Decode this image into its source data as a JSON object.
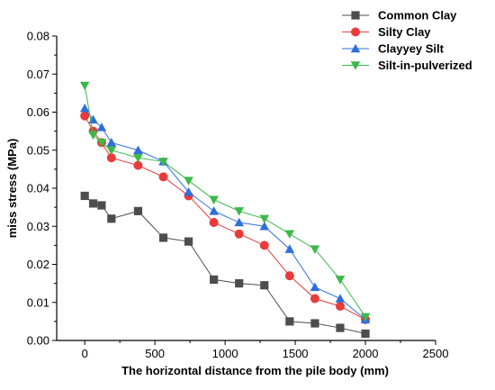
{
  "chart_data": {
    "type": "line",
    "title": "",
    "xlabel": "The horizontal distance from the pile body (mm)",
    "ylabel": "miss stress (MPa)",
    "xlim": [
      -200,
      2500
    ],
    "ylim": [
      0,
      0.08
    ],
    "x_ticks": [
      "0",
      "500",
      "1000",
      "1500",
      "2000",
      "2500"
    ],
    "y_ticks": [
      "0.00",
      "0.01",
      "0.02",
      "0.03",
      "0.04",
      "0.05",
      "0.06",
      "0.07",
      "0.08"
    ],
    "grid": false,
    "legend_position": "top-right",
    "series": [
      {
        "name": "Common Clay",
        "color": "#4d4d4d",
        "marker": "square",
        "x": [
          0,
          60,
          120,
          190,
          380,
          560,
          740,
          920,
          1100,
          1280,
          1460,
          1640,
          1820,
          2000
        ],
        "y": [
          0.038,
          0.036,
          0.0355,
          0.032,
          0.034,
          0.027,
          0.026,
          0.016,
          0.015,
          0.0145,
          0.005,
          0.0045,
          0.0033,
          0.0018
        ]
      },
      {
        "name": "Silty Clay",
        "color": "#e83b3b",
        "marker": "circle",
        "x": [
          0,
          60,
          120,
          190,
          380,
          560,
          740,
          920,
          1100,
          1280,
          1460,
          1640,
          1820,
          2000
        ],
        "y": [
          0.059,
          0.055,
          0.052,
          0.048,
          0.046,
          0.043,
          0.038,
          0.031,
          0.028,
          0.025,
          0.017,
          0.011,
          0.009,
          0.0055
        ]
      },
      {
        "name": "Clayyey Silt",
        "color": "#2f6fdc",
        "marker": "triangle-up",
        "x": [
          0,
          60,
          120,
          190,
          380,
          560,
          740,
          920,
          1100,
          1280,
          1460,
          1640,
          1820,
          2000
        ],
        "y": [
          0.061,
          0.058,
          0.056,
          0.052,
          0.05,
          0.047,
          0.039,
          0.034,
          0.031,
          0.03,
          0.024,
          0.014,
          0.011,
          0.0055
        ]
      },
      {
        "name": "Silt-in-pulverized",
        "color": "#3cb84a",
        "marker": "triangle-down",
        "x": [
          0,
          60,
          120,
          190,
          380,
          560,
          740,
          920,
          1100,
          1280,
          1460,
          1640,
          1820,
          2000
        ],
        "y": [
          0.067,
          0.054,
          0.052,
          0.05,
          0.048,
          0.047,
          0.042,
          0.037,
          0.034,
          0.032,
          0.028,
          0.024,
          0.016,
          0.0062
        ]
      }
    ]
  }
}
